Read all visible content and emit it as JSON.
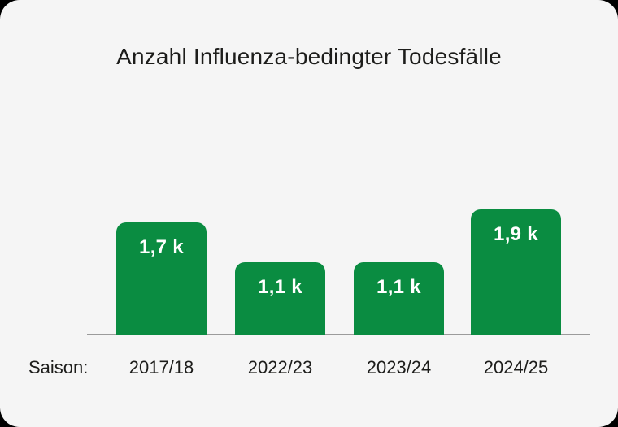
{
  "chart_data": {
    "type": "bar",
    "title": "Anzahl Influenza-bedingter Todesfälle",
    "x_axis_prefix": "Saison:",
    "categories": [
      "2017/18",
      "2022/23",
      "2023/24",
      "2024/25"
    ],
    "values": [
      1700,
      1100,
      1100,
      1900
    ],
    "value_labels": [
      "1,7 k",
      "1,1 k",
      "1,1 k",
      "1,9 k"
    ],
    "unit": "k",
    "ylim": [
      0,
      1900
    ],
    "grid": false,
    "legend": "none",
    "colors": {
      "bar": "#0a8c41",
      "value_label_text": "#ffffff",
      "axis_line": "#9b9b9b",
      "text": "#1d1d1b",
      "card_background": "#f5f5f5"
    }
  }
}
